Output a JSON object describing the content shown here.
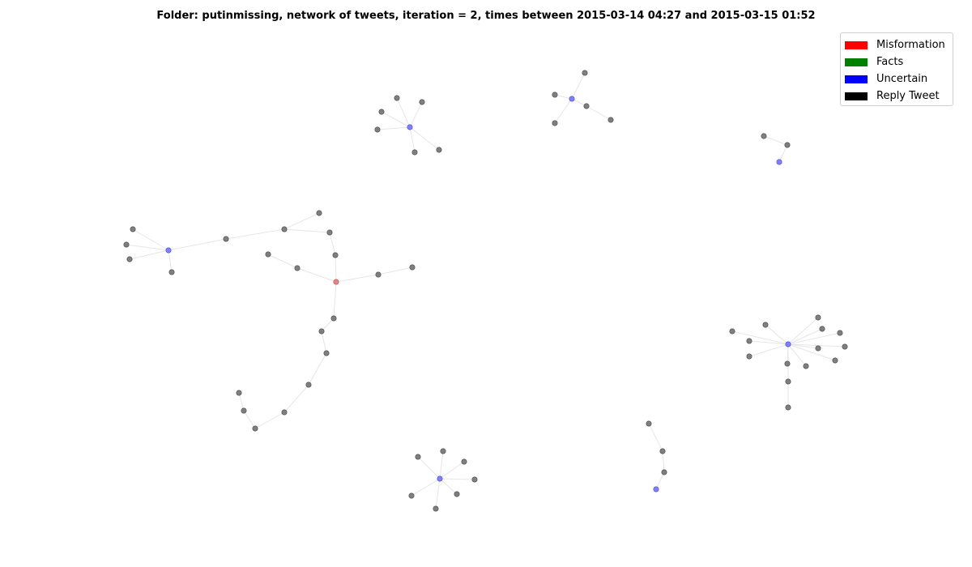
{
  "title": "Folder: putinmissing, network of tweets, iteration = 2, times between 2015-03-14 04:27 and 2015-03-15 01:52",
  "legend": [
    {
      "label": "Misformation",
      "color": "#ff0000"
    },
    {
      "label": "Facts",
      "color": "#008000"
    },
    {
      "label": "Uncertain",
      "color": "#0000ff"
    },
    {
      "label": "Reply Tweet",
      "color": "#000000"
    }
  ],
  "colors": {
    "misinformation_node": "#f08080",
    "uncertain_node": "#7f7fff",
    "reply_node": "#7f7f7f",
    "edge": "#e6e6e6"
  }
}
